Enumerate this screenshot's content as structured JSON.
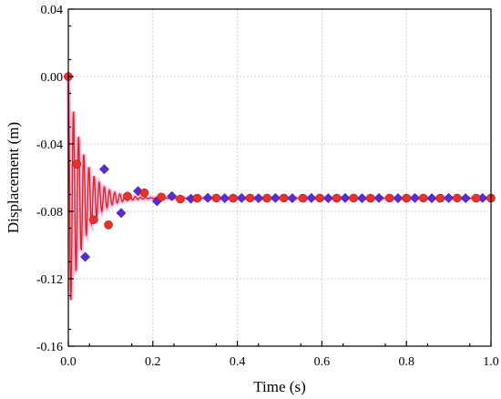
{
  "chart_data": {
    "type": "line",
    "xlabel": "Time (s)",
    "ylabel": "Displacement (m)",
    "xlim": [
      0.0,
      1.0
    ],
    "ylim": [
      -0.16,
      0.04
    ],
    "x_ticks": [
      "0.0",
      "0.2",
      "0.4",
      "0.6",
      "0.8",
      "1.0"
    ],
    "y_ticks": [
      "0.04",
      "0.00",
      "-0.04",
      "-0.08",
      "-0.12",
      "-0.16"
    ],
    "x_tick_values": [
      0.0,
      0.2,
      0.4,
      0.6,
      0.8,
      1.0
    ],
    "y_tick_values": [
      0.04,
      0.0,
      -0.04,
      -0.08,
      -0.12,
      -0.16
    ],
    "grid": true,
    "colors": {
      "line": "#d62a1e",
      "band": "#ff66cc",
      "diamond": "#5a2bd6",
      "circle": "#e8322a"
    },
    "series": [
      {
        "marker": "diamond",
        "x": [
          0.0,
          0.04,
          0.085,
          0.125,
          0.165,
          0.21,
          0.245,
          0.29,
          0.33,
          0.37,
          0.41,
          0.45,
          0.49,
          0.53,
          0.575,
          0.615,
          0.655,
          0.695,
          0.735,
          0.78,
          0.82,
          0.86,
          0.9,
          0.94,
          0.98
        ],
        "y": [
          0.0,
          -0.107,
          -0.055,
          -0.081,
          -0.068,
          -0.074,
          -0.071,
          -0.0725,
          -0.072,
          -0.0722,
          -0.0721,
          -0.0722,
          -0.0721,
          -0.0722,
          -0.0721,
          -0.0722,
          -0.0721,
          -0.0722,
          -0.0721,
          -0.0722,
          -0.0721,
          -0.0722,
          -0.0721,
          -0.0722,
          -0.0721
        ]
      },
      {
        "marker": "circle",
        "x": [
          0.0,
          0.02,
          0.06,
          0.095,
          0.14,
          0.18,
          0.22,
          0.265,
          0.305,
          0.35,
          0.39,
          0.43,
          0.47,
          0.51,
          0.555,
          0.595,
          0.635,
          0.675,
          0.715,
          0.76,
          0.8,
          0.84,
          0.88,
          0.92,
          0.965,
          1.0
        ],
        "y": [
          0.0,
          -0.052,
          -0.085,
          -0.088,
          -0.071,
          -0.069,
          -0.0715,
          -0.0727,
          -0.0722,
          -0.0721,
          -0.0722,
          -0.0721,
          -0.0722,
          -0.0721,
          -0.0722,
          -0.0721,
          -0.0722,
          -0.0721,
          -0.0722,
          -0.0721,
          -0.0722,
          -0.0721,
          -0.0722,
          -0.0721,
          -0.0722,
          -0.0722
        ]
      },
      {
        "style": "damped-oscillation",
        "equilibrium": -0.0722,
        "initial": 0.0,
        "amplitude": 0.0722,
        "frequency_hz": 82,
        "decay_per_s": 28
      }
    ]
  }
}
